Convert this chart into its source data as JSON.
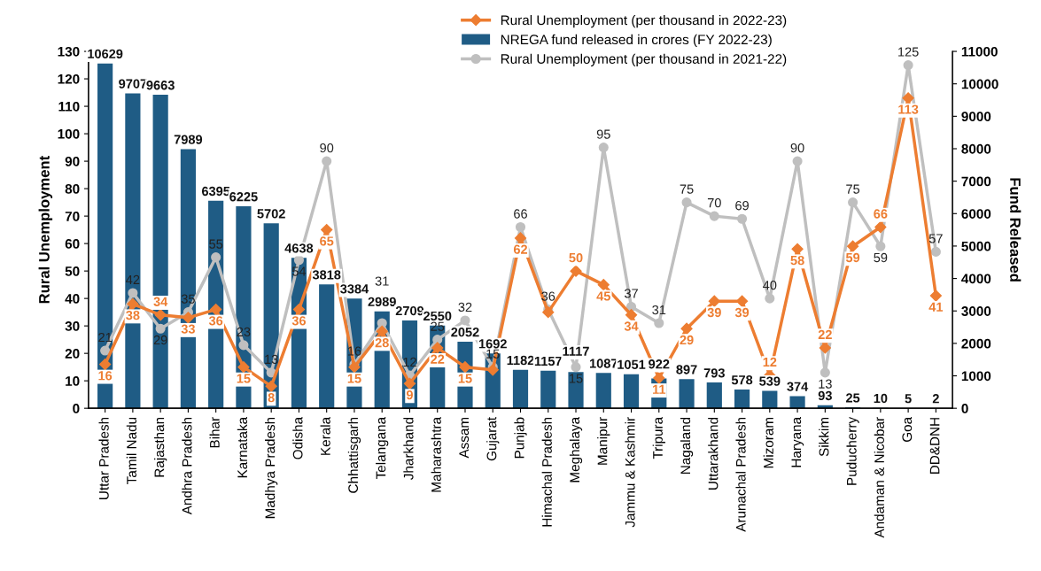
{
  "chart_data": {
    "type": "line",
    "ylabel": "Rural Unemployment",
    "y2label": "Fund Released",
    "categories": [
      "Uttar Pradesh",
      "Tamil Nadu",
      "Rajasthan",
      "Andhra Pradesh",
      "Bihar",
      "Karnataka",
      "Madhya Pradesh",
      "Odisha",
      "Kerala",
      "Chhattisgarh",
      "Telangana",
      "Jharkhand",
      "Maharashtra",
      "Assam",
      "Gujarat",
      "Punjab",
      "Himachal Pradesh",
      "Meghalaya",
      "Manipur",
      "Jammu & Kashmir",
      "Tripura",
      "Nagaland",
      "Uttarakhand",
      "Arunachal Pradesh",
      "Mizoram",
      "Haryana",
      "Sikkim",
      "Puducherry",
      "Andaman & Nicobar",
      "Goa",
      "DD&DNH"
    ],
    "series": [
      {
        "name": "Rural Unemployment (per thousand in 2022-23)",
        "color": "#ed7d31",
        "marker": "diamond",
        "values": [
          16,
          38,
          34,
          33,
          36,
          15,
          8,
          36,
          65,
          15,
          28,
          9,
          22,
          15,
          14,
          62,
          35,
          50,
          45,
          34,
          11,
          29,
          39,
          39,
          12,
          58,
          22,
          59,
          66,
          113,
          41
        ],
        "value_labels": [
          "16",
          "38",
          "34",
          "33",
          "36",
          "15",
          "8",
          "36",
          "65",
          "15",
          "28",
          "9",
          "22",
          "15",
          null,
          "62",
          null,
          "50",
          "45",
          "34",
          "11",
          "29",
          "39",
          "39",
          "12",
          "58",
          "22",
          "59",
          "66",
          "113",
          "41"
        ]
      },
      {
        "name": "NREGA fund released in crores (FY 2022-23)",
        "type": "bar",
        "axis": "y2",
        "color": "#1f5c85",
        "values": [
          10629,
          9707,
          9663,
          7989,
          6395,
          6225,
          5702,
          4638,
          3818,
          3384,
          2989,
          2709,
          2550,
          2052,
          1692,
          1182,
          1157,
          1117,
          1087,
          1051,
          922,
          897,
          793,
          578,
          539,
          374,
          93,
          25,
          10,
          5,
          2
        ]
      },
      {
        "name": "Rural Unemployment (per thousand in 2021-22)",
        "color": "#bfbfbf",
        "marker": "circle",
        "values": [
          21,
          42,
          29,
          35,
          55,
          23,
          13,
          54,
          90,
          16,
          31,
          12,
          25,
          32,
          15,
          66,
          36,
          15,
          95,
          37,
          31,
          75,
          70,
          69,
          40,
          90,
          13,
          75,
          59,
          125,
          57
        ]
      }
    ],
    "ylim": [
      0,
      130
    ],
    "yticks": [
      0,
      10,
      20,
      30,
      40,
      50,
      60,
      70,
      80,
      90,
      100,
      110,
      120,
      130
    ],
    "y2lim": [
      0,
      11000
    ],
    "y2ticks": [
      0,
      1000,
      2000,
      3000,
      4000,
      5000,
      6000,
      7000,
      8000,
      9000,
      10000,
      11000
    ],
    "data_labels": true,
    "legend": "top",
    "grid": false
  }
}
